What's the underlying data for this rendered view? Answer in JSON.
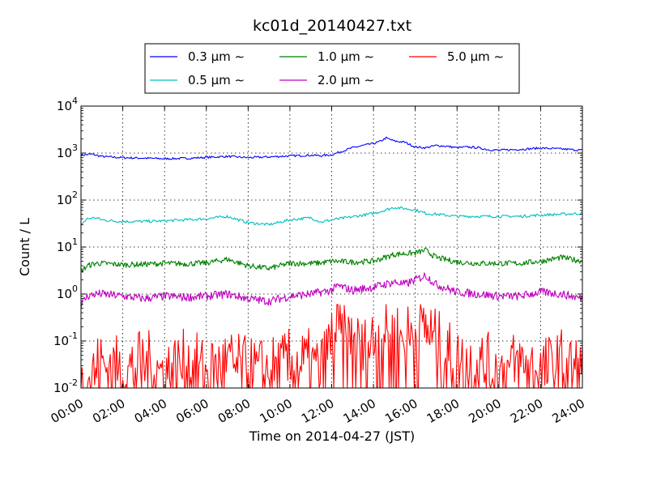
{
  "chart_data": {
    "type": "line",
    "title": "kc01d_20140427.txt",
    "xlabel": "Time on 2014-04-27 (JST)",
    "ylabel": "Count / L",
    "y_scale": "log",
    "ylim": [
      0.01,
      10000
    ],
    "y_tick_labels": [
      {
        "base": "10",
        "exp": "-2"
      },
      {
        "base": "10",
        "exp": "-1"
      },
      {
        "base": "10",
        "exp": "0"
      },
      {
        "base": "10",
        "exp": "1"
      },
      {
        "base": "10",
        "exp": "2"
      },
      {
        "base": "10",
        "exp": "3"
      },
      {
        "base": "10",
        "exp": "4"
      }
    ],
    "x_tick_labels": [
      "00:00",
      "02:00",
      "04:00",
      "06:00",
      "08:00",
      "10:00",
      "12:00",
      "14:00",
      "16:00",
      "18:00",
      "20:00",
      "22:00",
      "24:00"
    ],
    "x_unit": "hour",
    "xlim": [
      0,
      24
    ],
    "grid": true,
    "legend_position": "top-center, above plot, 3 columns",
    "series": [
      {
        "name": "0.3 μm ∼",
        "color": "#0000ff",
        "x": [
          0,
          0.5,
          1,
          1.5,
          2,
          3,
          4,
          5,
          6,
          7,
          8,
          9,
          10,
          11,
          11.5,
          12,
          12.5,
          13,
          13.5,
          14,
          14.3,
          14.6,
          15,
          15.5,
          16,
          16.5,
          17,
          17.5,
          18,
          18.5,
          19,
          19.5,
          20,
          21,
          22,
          23,
          24
        ],
        "values": [
          900,
          950,
          850,
          820,
          800,
          780,
          760,
          770,
          810,
          850,
          800,
          830,
          870,
          900,
          880,
          920,
          1100,
          1300,
          1450,
          1600,
          1750,
          2100,
          1800,
          1700,
          1350,
          1300,
          1450,
          1400,
          1300,
          1350,
          1300,
          1180,
          1150,
          1200,
          1280,
          1220,
          1150
        ]
      },
      {
        "name": "0.5 μm ∼",
        "color": "#00bfbf",
        "x": [
          0,
          0.3,
          0.7,
          1,
          1.5,
          2,
          3,
          4,
          5,
          6,
          7,
          8,
          9,
          10,
          11,
          11.5,
          12,
          13,
          14,
          14.5,
          15,
          16,
          16.5,
          17,
          18,
          19,
          20,
          21,
          22,
          23,
          24
        ],
        "values": [
          30,
          40,
          42,
          38,
          36,
          35,
          35,
          36,
          38,
          40,
          45,
          33,
          30,
          38,
          42,
          34,
          38,
          44,
          52,
          60,
          70,
          62,
          52,
          50,
          45,
          45,
          45,
          45,
          48,
          50,
          52
        ]
      },
      {
        "name": "1.0 μm ∼",
        "color": "#008000",
        "x": [
          0,
          0.3,
          0.7,
          1,
          2,
          3,
          4,
          5,
          6,
          7,
          8,
          9,
          10,
          11,
          11.5,
          12,
          13,
          14,
          15,
          16,
          16.5,
          17,
          18,
          19,
          20,
          21,
          22,
          23,
          24
        ],
        "values": [
          3,
          4,
          4.5,
          4.5,
          4.2,
          4.3,
          4.5,
          4.4,
          4.6,
          5.5,
          4.0,
          3.5,
          4.5,
          4.5,
          4.6,
          5,
          4.8,
          5,
          7,
          7.5,
          8.5,
          6,
          4.8,
          4.5,
          4.5,
          4.5,
          5,
          6,
          5
        ]
      },
      {
        "name": "2.0 μm ∼",
        "color": "#bf00bf",
        "x": [
          0,
          0.3,
          0.7,
          1,
          2,
          3,
          4,
          5,
          6,
          7,
          8,
          9,
          10,
          11,
          11.5,
          12,
          12.3,
          13,
          14,
          15,
          15.5,
          16,
          16.5,
          17,
          18,
          19,
          20,
          21,
          22,
          23,
          24
        ],
        "values": [
          0.6,
          0.9,
          1.0,
          1.0,
          0.9,
          0.8,
          0.9,
          0.85,
          0.9,
          1.0,
          0.8,
          0.7,
          0.9,
          1.0,
          1.1,
          1.2,
          1.5,
          1.2,
          1.4,
          1.8,
          1.6,
          2.0,
          2.5,
          1.6,
          1.1,
          1.0,
          0.9,
          0.9,
          1.1,
          1.0,
          0.8
        ]
      },
      {
        "name": "5.0 μm ∼",
        "color": "#ff0000",
        "x": [
          0,
          1,
          2,
          3,
          4,
          5,
          6,
          7,
          8,
          9,
          10,
          11,
          11.5,
          11.8,
          12,
          12.3,
          12.7,
          13,
          13.5,
          14,
          14.5,
          15,
          15.5,
          16,
          16.5,
          17,
          17.5,
          18,
          19,
          20,
          21,
          22,
          23,
          24
        ],
        "values": [
          0.01,
          0.03,
          0.02,
          0.03,
          0.02,
          0.03,
          0.02,
          0.03,
          0.02,
          0.02,
          0.03,
          0.03,
          0.02,
          0.06,
          0.1,
          0.15,
          0.08,
          0.1,
          0.05,
          0.1,
          0.15,
          0.12,
          0.1,
          0.15,
          0.2,
          0.08,
          0.05,
          0.03,
          0.03,
          0.02,
          0.03,
          0.02,
          0.03,
          0.02
        ]
      }
    ]
  }
}
